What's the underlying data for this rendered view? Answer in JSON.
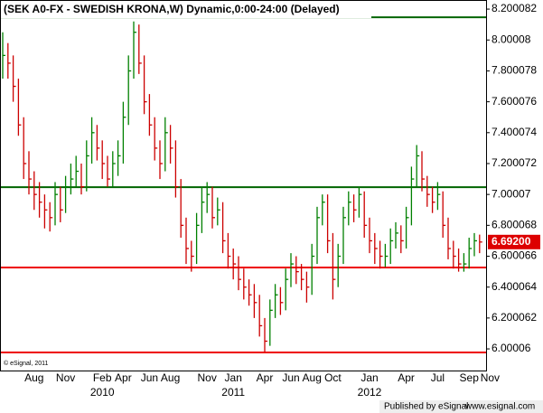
{
  "chart_data": {
    "type": "hlc",
    "title": "(SEK A0-FX - SWEDISH KRONA,W) Dynamic,0:00-24:00 (Delayed)",
    "credit": "© eSignal, 2011",
    "footer_left": "Published by eSignal",
    "footer_right": "www.esignal.com",
    "categories": [
      null,
      null,
      null,
      null,
      null,
      null,
      "Aug",
      null,
      null,
      null,
      null,
      null,
      "Nov",
      null,
      null,
      null,
      null,
      null,
      null,
      "Feb",
      null,
      null,
      null,
      "Apr",
      null,
      null,
      null,
      null,
      "Jun",
      null,
      null,
      null,
      "Aug",
      null,
      null,
      null,
      null,
      null,
      null,
      "Nov",
      null,
      null,
      null,
      null,
      "Jan",
      null,
      null,
      null,
      null,
      null,
      "Apr",
      null,
      null,
      null,
      null,
      "Jun",
      null,
      null,
      null,
      "Aug",
      null,
      null,
      null,
      "Oct",
      null,
      null,
      null,
      null,
      null,
      null,
      "Jan",
      null,
      null,
      null,
      null,
      null,
      null,
      "Apr",
      null,
      null,
      null,
      null,
      null,
      "Jul",
      null,
      null,
      null,
      null,
      null,
      "Sep",
      null,
      null,
      null,
      "Nov"
    ],
    "years": [
      null,
      null,
      null,
      null,
      null,
      null,
      null,
      null,
      null,
      null,
      null,
      null,
      null,
      null,
      null,
      null,
      null,
      null,
      null,
      "2010",
      null,
      null,
      null,
      null,
      null,
      null,
      null,
      null,
      null,
      null,
      null,
      null,
      null,
      null,
      null,
      null,
      null,
      null,
      null,
      null,
      null,
      null,
      null,
      null,
      "2011",
      null,
      null,
      null,
      null,
      null,
      null,
      null,
      null,
      null,
      null,
      null,
      null,
      null,
      null,
      null,
      null,
      null,
      null,
      null,
      null,
      null,
      null,
      null,
      null,
      null,
      "2012",
      null,
      null,
      null,
      null,
      null,
      null,
      null,
      null,
      null,
      null,
      null,
      null,
      null,
      null,
      null,
      null,
      null,
      null,
      null,
      null,
      null,
      null,
      null
    ],
    "high": [
      8.05,
      7.98,
      7.9,
      7.75,
      7.5,
      7.28,
      7.15,
      7.08,
      7.0,
      6.95,
      7.08,
      7.05,
      7.12,
      7.2,
      7.25,
      7.2,
      7.35,
      7.5,
      7.45,
      7.35,
      7.25,
      7.28,
      7.35,
      7.6,
      7.9,
      8.12,
      8.1,
      7.9,
      7.65,
      7.5,
      7.35,
      7.5,
      7.45,
      7.35,
      7.1,
      6.85,
      6.7,
      6.88,
      7.05,
      7.08,
      7.05,
      6.98,
      6.95,
      6.75,
      6.65,
      6.6,
      6.52,
      6.45,
      6.42,
      6.35,
      6.2,
      6.32,
      6.42,
      6.4,
      6.52,
      6.62,
      6.6,
      6.55,
      6.5,
      6.68,
      6.92,
      7.0,
      7.0,
      6.75,
      6.68,
      6.92,
      7.02,
      7.0,
      7.05,
      7.02,
      6.85,
      6.75,
      6.7,
      6.68,
      6.78,
      6.82,
      6.8,
      6.92,
      7.18,
      7.32,
      7.28,
      7.12,
      7.05,
      7.08,
      7.02,
      6.85,
      6.7,
      6.65,
      6.62,
      6.72,
      6.75,
      6.74,
      null,
      null
    ],
    "low": [
      7.75,
      7.75,
      7.6,
      7.38,
      7.1,
      7.0,
      6.9,
      6.85,
      6.78,
      6.76,
      6.8,
      6.82,
      6.88,
      7.0,
      7.05,
      7.0,
      7.02,
      7.2,
      7.22,
      7.1,
      7.05,
      7.05,
      7.12,
      7.2,
      7.45,
      7.75,
      7.78,
      7.52,
      7.38,
      7.22,
      7.1,
      7.15,
      7.2,
      6.98,
      6.72,
      6.55,
      6.5,
      6.55,
      6.75,
      6.88,
      6.78,
      6.8,
      6.62,
      6.52,
      6.45,
      6.38,
      6.32,
      6.28,
      6.2,
      6.08,
      5.98,
      6.02,
      6.2,
      6.22,
      6.25,
      6.4,
      6.42,
      6.38,
      6.3,
      6.35,
      6.55,
      6.8,
      6.62,
      6.32,
      6.4,
      6.55,
      6.8,
      6.82,
      6.85,
      6.72,
      6.62,
      6.55,
      6.52,
      6.53,
      6.55,
      6.65,
      6.62,
      6.65,
      6.8,
      7.05,
      7.02,
      6.92,
      6.88,
      6.9,
      6.72,
      6.58,
      6.52,
      6.5,
      6.5,
      6.52,
      6.6,
      6.62,
      null,
      null
    ],
    "close": [
      7.9,
      7.85,
      7.7,
      7.45,
      7.2,
      7.1,
      7.0,
      6.95,
      6.9,
      6.85,
      7.0,
      6.9,
      7.05,
      7.1,
      7.15,
      7.05,
      7.25,
      7.4,
      7.3,
      7.2,
      7.1,
      7.2,
      7.25,
      7.5,
      7.8,
      8.05,
      7.85,
      7.6,
      7.45,
      7.3,
      7.2,
      7.4,
      7.3,
      7.05,
      6.8,
      6.65,
      6.6,
      6.8,
      6.95,
      7.0,
      6.85,
      6.9,
      6.7,
      6.6,
      6.55,
      6.45,
      6.4,
      6.35,
      6.3,
      6.15,
      6.05,
      6.25,
      6.35,
      6.3,
      6.45,
      6.55,
      6.5,
      6.45,
      6.4,
      6.6,
      6.85,
      6.95,
      6.7,
      6.45,
      6.6,
      6.85,
      6.95,
      6.9,
      7.0,
      6.8,
      6.7,
      6.65,
      6.6,
      6.6,
      6.7,
      6.75,
      6.7,
      6.85,
      7.1,
      7.25,
      7.1,
      7.0,
      6.95,
      7.0,
      6.8,
      6.65,
      6.6,
      6.55,
      6.55,
      6.65,
      6.7,
      6.692,
      null,
      null
    ],
    "up_color": "#008000",
    "down_color": "#cc0000",
    "last_price": {
      "value": 6.692,
      "label": "6.69200",
      "color": "#dd0000"
    },
    "hlines": [
      {
        "value": 8.147,
        "color": "#006400"
      },
      {
        "value": 7.047,
        "color": "#006400"
      },
      {
        "value": 6.527,
        "color": "#ee0000"
      },
      {
        "value": 5.977,
        "color": "#ee0000"
      }
    ],
    "ylim": [
      5.86,
      8.259
    ],
    "yticks": [
      8.200082,
      8.00008,
      7.800078,
      7.600076,
      7.400074,
      7.200072,
      7.00007,
      6.800068,
      6.600066,
      6.400064,
      6.200062,
      6.00006
    ]
  }
}
